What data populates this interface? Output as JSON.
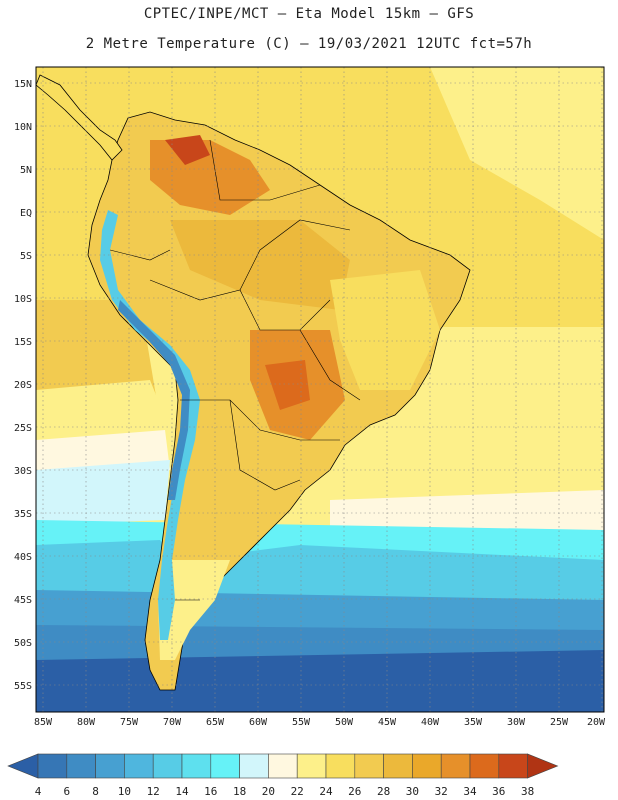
{
  "header": {
    "line1": "CPTEC/INPE/MCT –  Eta Model 15km – GFS",
    "line2": "2 Metre Temperature (C) – 19/03/2021 12UTC fct=57h"
  },
  "map": {
    "lat_labels": [
      "15N",
      "10N",
      "5N",
      "EQ",
      "5S",
      "10S",
      "15S",
      "20S",
      "25S",
      "30S",
      "35S",
      "40S",
      "45S",
      "50S",
      "55S"
    ],
    "lon_labels": [
      "85W",
      "80W",
      "75W",
      "70W",
      "65W",
      "60W",
      "55W",
      "50W",
      "45W",
      "40W",
      "35W",
      "30W",
      "25W",
      "20W"
    ]
  },
  "colorbar": {
    "labels": [
      "4",
      "6",
      "8",
      "10",
      "12",
      "14",
      "16",
      "18",
      "20",
      "22",
      "24",
      "26",
      "28",
      "30",
      "32",
      "34",
      "36",
      "38"
    ],
    "colors": [
      "#2b5fa6",
      "#3676b5",
      "#3f8cc4",
      "#47a0d1",
      "#4fb6de",
      "#57cce6",
      "#5ee0ee",
      "#66f2f7",
      "#d2f6fb",
      "#fff8e0",
      "#fdf08a",
      "#f8de5e",
      "#f2cb50",
      "#ecb93c",
      "#eaa82a",
      "#e6902a",
      "#dc6a1c",
      "#c8461a",
      "#b03414"
    ]
  }
}
